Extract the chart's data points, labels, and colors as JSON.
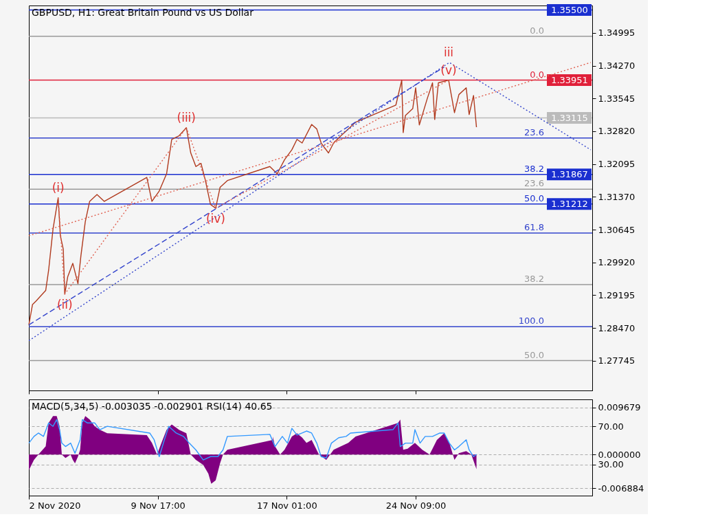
{
  "chart_data": [
    {
      "type": "line",
      "title": "GBPUSD, H1:  Great Britain Pound vs US Dollar",
      "xlim": [
        "2020-11-02T09:00",
        "2020-12-04T10:00"
      ],
      "xticks": [
        {
          "value": "2020-11-02T09:00",
          "label": null
        },
        {
          "value": "2020-11-09T17:00",
          "label": null
        },
        {
          "value": "2020-11-17T01:00",
          "label": null
        },
        {
          "value": "2020-11-24T09:00",
          "label": null
        }
      ],
      "ylim": [
        1.2709,
        1.356
      ],
      "yticks": [
        1.34995,
        {
          "value": 1.3427,
          "label": "1.34270"
        },
        1.33545,
        {
          "value": 1.3282,
          "label": "1.32820"
        },
        1.32095,
        {
          "value": 1.3137,
          "label": "1.31370"
        },
        1.30645,
        {
          "value": 1.2992,
          "label": "1.29920"
        },
        1.29195,
        {
          "value": 1.2847,
          "label": "1.28470"
        },
        1.27745
      ],
      "tick_labels": "y",
      "grid": false,
      "series": [
        {
          "color": "#b03a1e",
          "x": [
            "2020-11-02T09:00",
            "2020-11-02T14:00",
            "2020-11-02T19:00",
            "2020-11-03T08:00",
            "2020-11-03T12:00",
            "2020-11-03T18:00",
            "2020-11-04T01:00",
            "2020-11-04T04:00",
            "2020-11-04T08:00",
            "2020-11-04T10:00",
            "2020-11-04T14:00",
            "2020-11-04T21:00",
            "2020-11-05T04:00",
            "2020-11-05T08:00",
            "2020-11-05T14:00",
            "2020-11-05T20:00",
            "2020-11-06T06:00",
            "2020-11-06T16:00",
            "2020-11-09T02:00",
            "2020-11-09T09:00",
            "2020-11-09T19:00",
            "2020-11-10T05:00",
            "2020-11-10T12:00",
            "2020-11-10T22:00",
            "2020-11-11T08:00",
            "2020-11-11T14:00",
            "2020-11-11T21:00",
            "2020-11-12T04:00",
            "2020-11-12T10:00",
            "2020-11-12T17:00",
            "2020-11-13T00:00",
            "2020-11-13T06:00",
            "2020-11-13T16:00",
            "2020-11-16T02:00",
            "2020-11-16T12:00",
            "2020-11-16T22:00",
            "2020-11-17T08:00",
            "2020-11-17T15:00",
            "2020-11-17T22:00",
            "2020-11-18T11:00",
            "2020-11-18T18:00",
            "2020-11-19T00:00",
            "2020-11-19T10:00",
            "2020-11-19T17:00",
            "2020-11-20T03:00",
            "2020-11-20T13:00",
            "2020-11-20T23:00",
            "2020-11-23T06:00",
            "2020-11-23T14:00",
            "2020-11-23T16:00",
            "2020-11-23T19:00",
            "2020-11-24T05:00",
            "2020-11-24T09:00",
            "2020-11-24T14:00",
            "2020-11-25T01:00",
            "2020-11-25T08:00",
            "2020-11-25T11:00",
            "2020-11-25T16:00",
            "2020-11-26T06:00",
            "2020-11-26T14:00",
            "2020-11-26T20:00",
            "2020-11-27T06:00",
            "2020-11-27T10:00",
            "2020-11-27T16:00",
            "2020-11-27T20:00"
          ],
          "values": [
            1.2854,
            1.2899,
            1.2907,
            1.293,
            1.2975,
            1.3066,
            1.3135,
            1.3051,
            1.3021,
            1.2922,
            1.296,
            1.299,
            1.2945,
            1.3006,
            1.3082,
            1.3127,
            1.3142,
            1.3127,
            1.318,
            1.3127,
            1.315,
            1.3188,
            1.3264,
            1.3272,
            1.329,
            1.3234,
            1.3204,
            1.3211,
            1.3173,
            1.312,
            1.3112,
            1.3158,
            1.3173,
            1.3204,
            1.3188,
            1.3219,
            1.3241,
            1.3264,
            1.3256,
            1.3297,
            1.3287,
            1.3256,
            1.3234,
            1.3256,
            1.3272,
            1.3287,
            1.3302,
            1.334,
            1.3395,
            1.3279,
            1.3317,
            1.3332,
            1.3378,
            1.3296,
            1.3355,
            1.3389,
            1.3308,
            1.3389,
            1.3395,
            1.3323,
            1.3363,
            1.3378,
            1.3319,
            1.3361,
            1.3291
          ]
        },
        {
          "type": "line",
          "line_style": "dashed",
          "color": "#3344cc",
          "x": [
            "2020-11-02T09:00",
            "2020-11-26T00:00"
          ],
          "values": [
            1.2854,
            1.3424
          ]
        },
        {
          "type": "line",
          "line_style": "dotted",
          "color": "#3344cc",
          "x": [
            "2020-11-02T09:00",
            "2020-11-26T07:00",
            "2020-12-04T08:00"
          ],
          "values": [
            1.2819,
            1.3434,
            1.3241
          ]
        },
        {
          "type": "line",
          "line_style": "dotted",
          "color": "#e06050",
          "x": [
            "2020-11-02T09:00",
            "2020-12-04T08:00"
          ],
          "values": [
            1.3051,
            1.3434
          ]
        },
        {
          "type": "line",
          "line_style": "dotted",
          "color": "#e06050",
          "x": [
            "2020-11-04T01:00",
            "2020-11-04T10:00",
            "2020-11-11T08:00",
            "2020-11-13T00:00",
            "2020-11-26T06:00"
          ],
          "values": [
            1.3135,
            1.2922,
            1.329,
            1.3112,
            1.3395
          ]
        }
      ],
      "ref_lines": [
        {
          "axis": "y",
          "value": 1.3492,
          "color": "#999999"
        },
        {
          "axis": "y",
          "value": 1.33951,
          "label": "1.33951",
          "color": "#e0203a"
        },
        {
          "axis": "y",
          "value": 1.3267,
          "color": "#3344cc"
        },
        {
          "axis": "y",
          "value": 1.31867,
          "label": "1.31867",
          "color": "#1a2fd0"
        },
        {
          "axis": "y",
          "value": 1.3154,
          "color": "#999999"
        },
        {
          "axis": "y",
          "value": 1.31212,
          "label": "1.31212",
          "color": "#1a2fd0"
        },
        {
          "axis": "y",
          "value": 1.3057,
          "color": "#3344cc"
        },
        {
          "axis": "y",
          "value": 1.2943,
          "color": "#999999"
        },
        {
          "axis": "y",
          "value": 1.285,
          "color": "#3344cc"
        },
        {
          "axis": "y",
          "value": 1.2775,
          "color": "#999999"
        },
        {
          "axis": "y",
          "value": 1.355,
          "label": "1.35500",
          "color": "#1a2fd0"
        },
        {
          "axis": "y",
          "value": 1.33115,
          "label": "1.33115",
          "color": "#bbbbbb"
        }
      ],
      "annotations": [
        "0.0",
        "0.0",
        "23.6",
        "38.2",
        "23.6",
        "50.0",
        "61.8",
        "38.2",
        "100.0",
        "50.0",
        {
          "text": "(i)",
          "x": "2020-11-04T01:00",
          "y": 1.3135
        },
        {
          "text": "(ii)",
          "x": "2020-11-04T10:00",
          "y": 1.2922
        },
        {
          "text": "(iii)",
          "x": "2020-11-11T08:00",
          "y": 1.329
        },
        {
          "text": "(iv)",
          "x": "2020-11-13T00:00",
          "y": 1.3112
        },
        {
          "text": "(v)",
          "x": "2020-11-26T06:00",
          "y": 1.3395
        },
        {
          "text": "iii",
          "x": "2020-11-26T06:00",
          "y": 1.3395
        }
      ]
    },
    {
      "type": "area",
      "title": "MACD(5,34,5) -0.003035 -0.002901 RSI(14) 40.65",
      "x": [
        "2020-11-02T09:00",
        "2020-11-02T16:00",
        "2020-11-02T22:00",
        "2020-11-03T08:00",
        "2020-11-03T12:00",
        "2020-11-03T18:00",
        "2020-11-03T23:00",
        "2020-11-04T03:00",
        "2020-11-04T06:00",
        "2020-11-04T11:00",
        "2020-11-04T18:00",
        "2020-11-04T21:00",
        "2020-11-05T00:00",
        "2020-11-05T04:00",
        "2020-11-05T07:00",
        "2020-11-05T10:00",
        "2020-11-05T14:00",
        "2020-11-05T20:00",
        "2020-11-06T03:00",
        "2020-11-06T10:00",
        "2020-11-06T20:00",
        "2020-11-09T02:00",
        "2020-11-09T09:00",
        "2020-11-09T16:00",
        "2020-11-09T22:00",
        "2020-11-10T05:00",
        "2020-11-10T12:00",
        "2020-11-10T22:00",
        "2020-11-11T08:00",
        "2020-11-11T14:00",
        "2020-11-11T21:00",
        "2020-11-12T07:00",
        "2020-11-12T14:00",
        "2020-11-12T18:00",
        "2020-11-13T00:00",
        "2020-11-13T06:00",
        "2020-11-13T10:00",
        "2020-11-13T16:00",
        "2020-11-16T06:00",
        "2020-11-16T06:00",
        "2020-11-16T09:00",
        "2020-11-16T16:00",
        "2020-11-16T22:00",
        "2020-11-17T08:00",
        "2020-11-17T15:00",
        "2020-11-17T22:00",
        "2020-11-18T04:00",
        "2020-11-18T11:00",
        "2020-11-18T21:00",
        "2020-11-19T07:00",
        "2020-11-19T17:00",
        "2020-11-20T03:00",
        "2020-11-20T13:00",
        "2020-11-20T23:00",
        "2020-11-23T09:00",
        "2020-11-23T12:00",
        "2020-11-23T16:00",
        "2020-11-23T22:00",
        "2020-11-24T08:00",
        "2020-11-24T18:00",
        "2020-11-25T04:00",
        "2020-11-25T14:00",
        "2020-11-26T00:00",
        "2020-11-26T07:00",
        "2020-11-26T14:00",
        "2020-11-26T20:00",
        "2020-11-27T06:00",
        "2020-11-27T13:00",
        "2020-11-27T20:00"
      ],
      "xlim": [
        "2020-11-02T09:00",
        "2020-12-04T10:00"
      ],
      "xticks": [
        {
          "value": "2020-11-02T09:00",
          "label": "2 Nov 2020"
        },
        {
          "value": "2020-11-09T17:00",
          "label": "9 Nov 17:00"
        },
        {
          "value": "2020-11-17T01:00",
          "label": "17 Nov 01:00"
        },
        {
          "value": "2020-11-24T09:00",
          "label": "24 Nov 09:00"
        }
      ],
      "ylim": [
        -0.00843,
        0.01134
      ],
      "yticks": [
        {
          "value": 0.009679,
          "label": "0.009679"
        },
        {
          "value": 0,
          "label": "0.000000"
        },
        {
          "value": -0.006884,
          "label": "-0.006884"
        }
      ],
      "y2lim": [
        -2.3,
        98.1
      ],
      "y2ticks": [
        {
          "value": 70,
          "label": "70.00"
        },
        {
          "value": 30,
          "label": "30.00"
        }
      ],
      "grid": "y",
      "series": [
        {
          "color": "#800080",
          "values": [
            -0.0032,
            -0.0011,
            0,
            0.0017,
            0.0065,
            0.0079,
            0.0079,
            0.0058,
            0,
            -0.0007,
            0,
            -0.0011,
            -0.0018,
            -0.0004,
            0.001,
            0.0065,
            0.0079,
            0.0072,
            0.0058,
            0.0051,
            0.0044,
            0.004,
            0.0024,
            0,
            0.0024,
            0.0051,
            0.0062,
            0.0051,
            0.0044,
            0,
            -0.0011,
            -0.0021,
            -0.0039,
            -0.006,
            -0.0053,
            -0.0018,
            0,
            0.001,
            0.003,
            0.0037,
            0.0017,
            0,
            0.001,
            0.0037,
            0.0044,
            0.0035,
            0.0024,
            0.003,
            0,
            -0.0011,
            0.001,
            0.0017,
            0.0024,
            0.0037,
            0.0065,
            0.0072,
            0.001,
            0.0012,
            0.0024,
            0.001,
            0,
            0.003,
            0.0044,
            0.0024,
            -0.0011,
            0.0003,
            0.0007,
            0,
            -0.003
          ]
        },
        {
          "type": "line",
          "axis": "y2",
          "color": "#3399ff",
          "x": [
            "2020-11-02T09:00",
            "2020-11-02T16:00",
            "2020-11-02T22:00",
            "2020-11-03T05:00",
            "2020-11-03T12:00",
            "2020-11-03T18:00",
            "2020-11-03T23:00",
            "2020-11-04T03:00",
            "2020-11-04T06:00",
            "2020-11-04T11:00",
            "2020-11-04T18:00",
            "2020-11-05T00:00",
            "2020-11-05T07:00",
            "2020-11-05T10:00",
            "2020-11-05T17:00",
            "2020-11-06T03:00",
            "2020-11-06T10:00",
            "2020-11-06T20:00",
            "2020-11-09T06:00",
            "2020-11-09T12:00",
            "2020-11-09T19:00",
            "2020-11-10T02:00",
            "2020-11-10T08:00",
            "2020-11-10T18:00",
            "2020-11-11T04:00",
            "2020-11-11T12:00",
            "2020-11-11T21:00",
            "2020-11-12T07:00",
            "2020-11-12T17:00",
            "2020-11-13T03:00",
            "2020-11-13T10:00",
            "2020-11-13T16:00",
            "2020-11-16T02:00",
            "2020-11-16T09:00",
            "2020-11-16T19:00",
            "2020-11-17T02:00",
            "2020-11-17T08:00",
            "2020-11-17T15:00",
            "2020-11-17T22:00",
            "2020-11-18T04:00",
            "2020-11-18T11:00",
            "2020-11-18T18:00",
            "2020-11-19T00:00",
            "2020-11-19T07:00",
            "2020-11-19T14:00",
            "2020-11-20T00:00",
            "2020-11-20T10:00",
            "2020-11-20T16:00",
            "2020-11-23T02:00",
            "2020-11-23T09:00",
            "2020-11-23T12:00",
            "2020-11-23T19:00",
            "2020-11-24T05:00",
            "2020-11-24T08:00",
            "2020-11-24T15:00",
            "2020-11-24T22:00",
            "2020-11-25T08:00",
            "2020-11-25T18:00",
            "2020-11-26T00:00",
            "2020-11-26T07:00",
            "2020-11-26T14:00",
            "2020-11-26T20:00",
            "2020-11-27T06:00",
            "2020-11-27T10:00",
            "2020-11-27T16:00",
            "2020-11-27T20:00"
          ],
          "values": [
            52.5,
            59.5,
            63,
            59.5,
            73.5,
            70,
            77,
            66.5,
            52.5,
            48.9,
            52.5,
            41.9,
            56,
            77,
            73.5,
            73.5,
            66.5,
            70,
            63,
            56,
            38.4,
            56,
            70,
            63,
            59.5,
            52.5,
            45.4,
            34.9,
            38.4,
            38.4,
            45.4,
            59.5,
            61.6,
            48.9,
            59.5,
            52.5,
            67.9,
            60.9,
            63,
            65.1,
            63,
            52.5,
            38.4,
            37,
            52.5,
            58.1,
            59.5,
            63,
            66.5,
            73.5,
            48.9,
            52.5,
            52.5,
            66.5,
            52.5,
            59.5,
            59.5,
            63,
            63,
            52.5,
            45.4,
            48.9,
            56,
            45.4,
            38.4,
            40.7
          ]
        }
      ]
    }
  ]
}
